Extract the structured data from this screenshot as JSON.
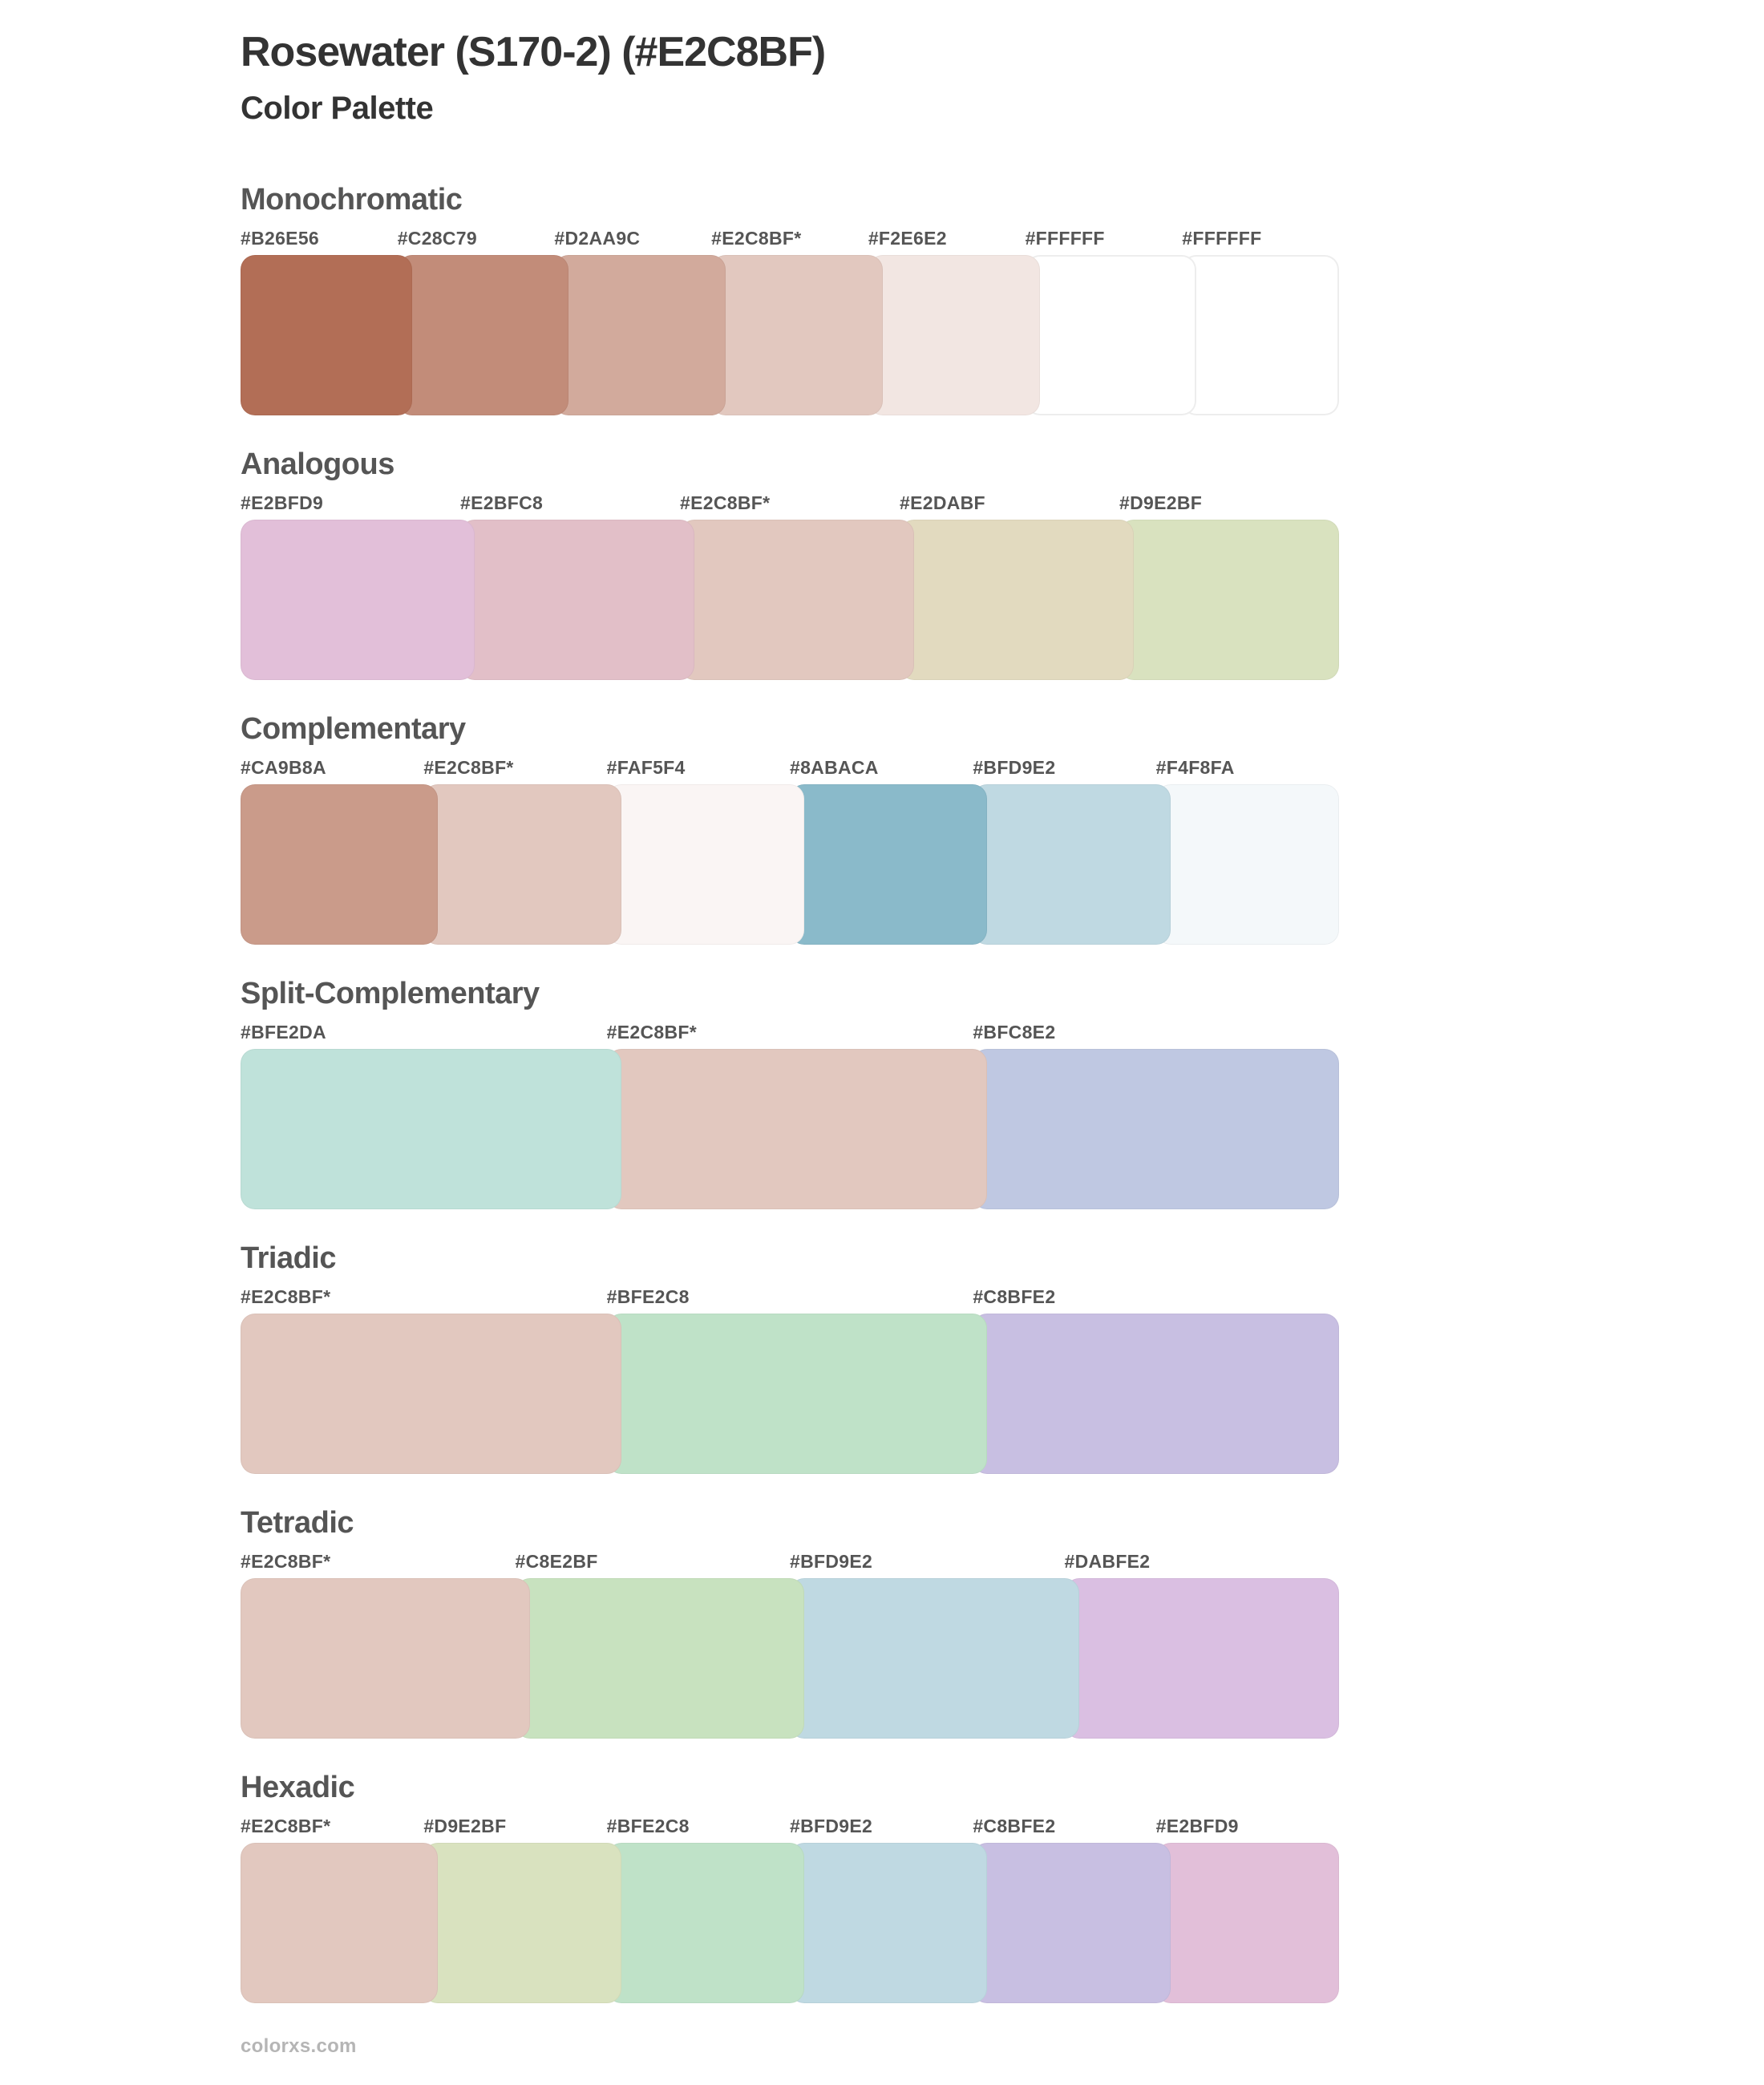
{
  "header": {
    "title": "Rosewater (S170-2) (#E2C8BF)",
    "subtitle": "Color Palette"
  },
  "base_color": "#E2C8BF",
  "theme": {
    "title_text": "#333333",
    "heading_text": "#555555",
    "label_text": "#555555",
    "credit_text": "#B5B5B5",
    "background": "#FFFFFF"
  },
  "sections": [
    {
      "name": "Monochromatic",
      "swatches": [
        {
          "label": "#B26E56",
          "color": "#B26E56"
        },
        {
          "label": "#C28C79",
          "color": "#C28C79"
        },
        {
          "label": "#D2AA9C",
          "color": "#D2AA9C"
        },
        {
          "label": "#E2C8BF*",
          "color": "#E2C8BF"
        },
        {
          "label": "#F2E6E2",
          "color": "#F2E6E2"
        },
        {
          "label": "#FFFFFF",
          "color": "#FFFFFF"
        },
        {
          "label": "#FFFFFF",
          "color": "#FFFFFF"
        }
      ]
    },
    {
      "name": "Analogous",
      "swatches": [
        {
          "label": "#E2BFD9",
          "color": "#E2BFD9"
        },
        {
          "label": "#E2BFC8",
          "color": "#E2BFC8"
        },
        {
          "label": "#E2C8BF*",
          "color": "#E2C8BF"
        },
        {
          "label": "#E2DABF",
          "color": "#E2DABF"
        },
        {
          "label": "#D9E2BF",
          "color": "#D9E2BF"
        }
      ]
    },
    {
      "name": "Complementary",
      "swatches": [
        {
          "label": "#CA9B8A",
          "color": "#CA9B8A"
        },
        {
          "label": "#E2C8BF*",
          "color": "#E2C8BF"
        },
        {
          "label": "#FAF5F4",
          "color": "#FAF5F4"
        },
        {
          "label": "#8ABACA",
          "color": "#8ABACA"
        },
        {
          "label": "#BFD9E2",
          "color": "#BFD9E2"
        },
        {
          "label": "#F4F8FA",
          "color": "#F4F8FA"
        }
      ]
    },
    {
      "name": "Split-Complementary",
      "swatches": [
        {
          "label": "#BFE2DA",
          "color": "#BFE2DA"
        },
        {
          "label": "#E2C8BF*",
          "color": "#E2C8BF"
        },
        {
          "label": "#BFC8E2",
          "color": "#BFC8E2"
        }
      ]
    },
    {
      "name": "Triadic",
      "swatches": [
        {
          "label": "#E2C8BF*",
          "color": "#E2C8BF"
        },
        {
          "label": "#BFE2C8",
          "color": "#BFE2C8"
        },
        {
          "label": "#C8BFE2",
          "color": "#C8BFE2"
        }
      ]
    },
    {
      "name": "Tetradic",
      "swatches": [
        {
          "label": "#E2C8BF*",
          "color": "#E2C8BF"
        },
        {
          "label": "#C8E2BF",
          "color": "#C8E2BF"
        },
        {
          "label": "#BFD9E2",
          "color": "#BFD9E2"
        },
        {
          "label": "#DABFE2",
          "color": "#DABFE2"
        }
      ]
    },
    {
      "name": "Hexadic",
      "swatches": [
        {
          "label": "#E2C8BF*",
          "color": "#E2C8BF"
        },
        {
          "label": "#D9E2BF",
          "color": "#D9E2BF"
        },
        {
          "label": "#BFE2C8",
          "color": "#BFE2C8"
        },
        {
          "label": "#BFD9E2",
          "color": "#BFD9E2"
        },
        {
          "label": "#C8BFE2",
          "color": "#C8BFE2"
        },
        {
          "label": "#E2BFD9",
          "color": "#E2BFD9"
        }
      ]
    }
  ],
  "footer": {
    "credit": "colorxs.com"
  }
}
